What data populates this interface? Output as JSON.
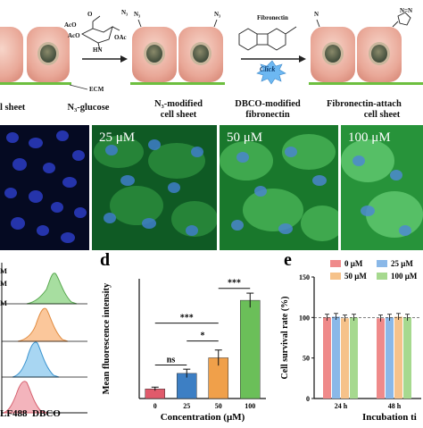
{
  "top": {
    "ecm_label": "ECM",
    "n3_label_1": "N₃",
    "n3_label_2": "N₃",
    "n3_label_3": "N₃",
    "n_label": "N",
    "ring_label": "N=N",
    "fibronectin_label": "Fibronectin",
    "click_label": "Click",
    "captions": {
      "cell_sheet": "l sheet",
      "n3_glucose": "N₃-glucose",
      "n3_modified_1": "N₃-modified",
      "n3_modified_2": "cell sheet",
      "dbco_modified_1": "DBCO-modified",
      "dbco_modified_2": "fibronectin",
      "fibronectin_attached_1": "Fibronectin-attach",
      "fibronectin_attached_2": "cell sheet"
    },
    "molecule": {
      "ac1": "AcO",
      "ac2": "AcO",
      "ac3": "OAc",
      "hn": "HN",
      "o": "O"
    }
  },
  "panels": {
    "p0": "",
    "p1": "25 μM",
    "p2": "50 μM",
    "p3": "100 μM"
  },
  "flow": {
    "legend_fragments": [
      "M",
      "M",
      "M"
    ],
    "xlabel": "LF488  DBCO",
    "colors": [
      "#7cc576",
      "#f5a462",
      "#63b4e3",
      "#e8828e"
    ]
  },
  "chart_data": [
    {
      "type": "bar",
      "panel_letter": "d",
      "ylabel": "Mean fluorescence intensity",
      "xlabel": "Concentration (μM)",
      "categories": [
        "0",
        "25",
        "50",
        "100"
      ],
      "values": [
        8,
        21,
        34,
        82
      ],
      "errors": [
        1.5,
        3.5,
        6.5,
        6
      ],
      "ylim": [
        0,
        100
      ],
      "colors": [
        "#e05a6b",
        "#3d7fc4",
        "#f0a04a",
        "#6bbf59"
      ],
      "significance": [
        "ns",
        "*",
        "***",
        "***"
      ]
    },
    {
      "type": "bar",
      "panel_letter": "e",
      "ylabel": "Cell survival rate (%)",
      "xlabel": "Incubation ti",
      "ylim": [
        0,
        150
      ],
      "yticks": [
        "0",
        "50",
        "100",
        "150"
      ],
      "categories": [
        "24 h",
        "48 h"
      ],
      "series": [
        {
          "name": "0 μM",
          "color": "#ef8a8a",
          "values": [
            100,
            99
          ]
        },
        {
          "name": "25 μM",
          "color": "#8ab8e8",
          "values": [
            101,
            100
          ]
        },
        {
          "name": "50 μM",
          "color": "#f6c28a",
          "values": [
            99,
            101
          ]
        },
        {
          "name": "100 μM",
          "color": "#a6d98f",
          "values": [
            100,
            100
          ]
        }
      ]
    }
  ]
}
